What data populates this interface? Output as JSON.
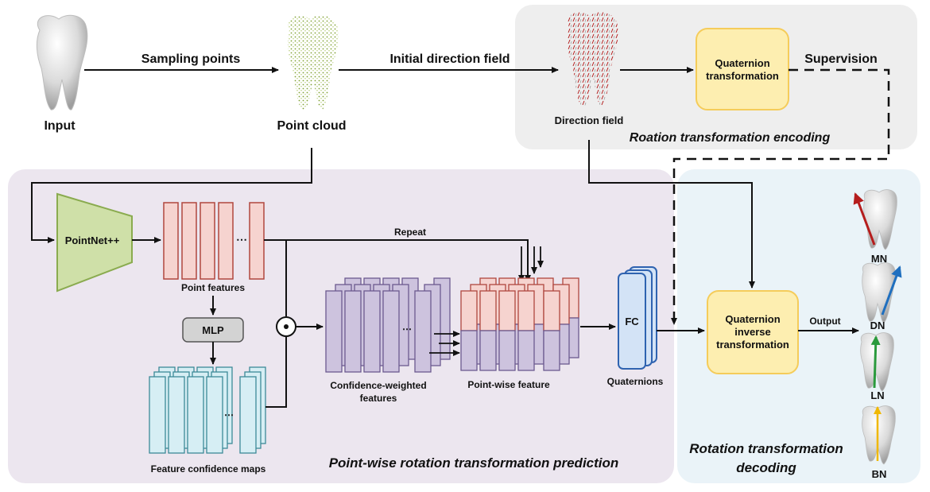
{
  "labels": {
    "input": "Input",
    "point_cloud": "Point cloud",
    "sampling_points": "Sampling points",
    "initial_direction_field": "Initial direction field",
    "direction_field": "Direction field",
    "quaternion_transformation_1": "Quaternion",
    "quaternion_transformation_2": "transformation",
    "supervision": "Supervision",
    "rotation_encoding": "Roation transformation encoding",
    "pointnet": "PointNet++",
    "point_features": "Point features",
    "mlp": "MLP",
    "feature_confidence_maps": "Feature confidence maps",
    "repeat": "Repeat",
    "confidence_weighted_1": "Confidence-weighted",
    "confidence_weighted_2": "features",
    "point_wise_feature": "Point-wise feature",
    "fc": "FC",
    "quaternions": "Quaternions",
    "quaternion_inverse_1": "Quaternion",
    "quaternion_inverse_2": "inverse",
    "quaternion_inverse_3": "transformation",
    "output": "Output",
    "prediction_title": "Point-wise rotation transformation prediction",
    "decoding_title_1": "Rotation transformation",
    "decoding_title_2": "decoding",
    "mn": "MN",
    "dn": "DN",
    "ln": "LN",
    "bn": "BN",
    "dots": "⋯"
  },
  "colors": {
    "encoding_bg": "#eeeeee",
    "prediction_bg": "#ece6ef",
    "decoding_bg": "#eaf3f8",
    "yellow_box": "#fdeeb0",
    "yellow_border": "#f5cc5a",
    "pointnet_fill": "#cfe0a8",
    "pointnet_border": "#8aab4f",
    "red_feature": "#f6d3cf",
    "red_border": "#b0473f",
    "cyan_feature": "#d6eef4",
    "cyan_border": "#3d8a97",
    "purple_feature": "#cdc3de",
    "purple_border": "#6c5a8f",
    "fc_fill": "#d3e3f6",
    "fc_border": "#2f63b0",
    "mlp_fill": "#d3d3d3",
    "arrow_mn": "#b51d1d",
    "arrow_dn": "#1f6fbf",
    "arrow_ln": "#2a9a3c",
    "arrow_bn": "#f0b800"
  }
}
